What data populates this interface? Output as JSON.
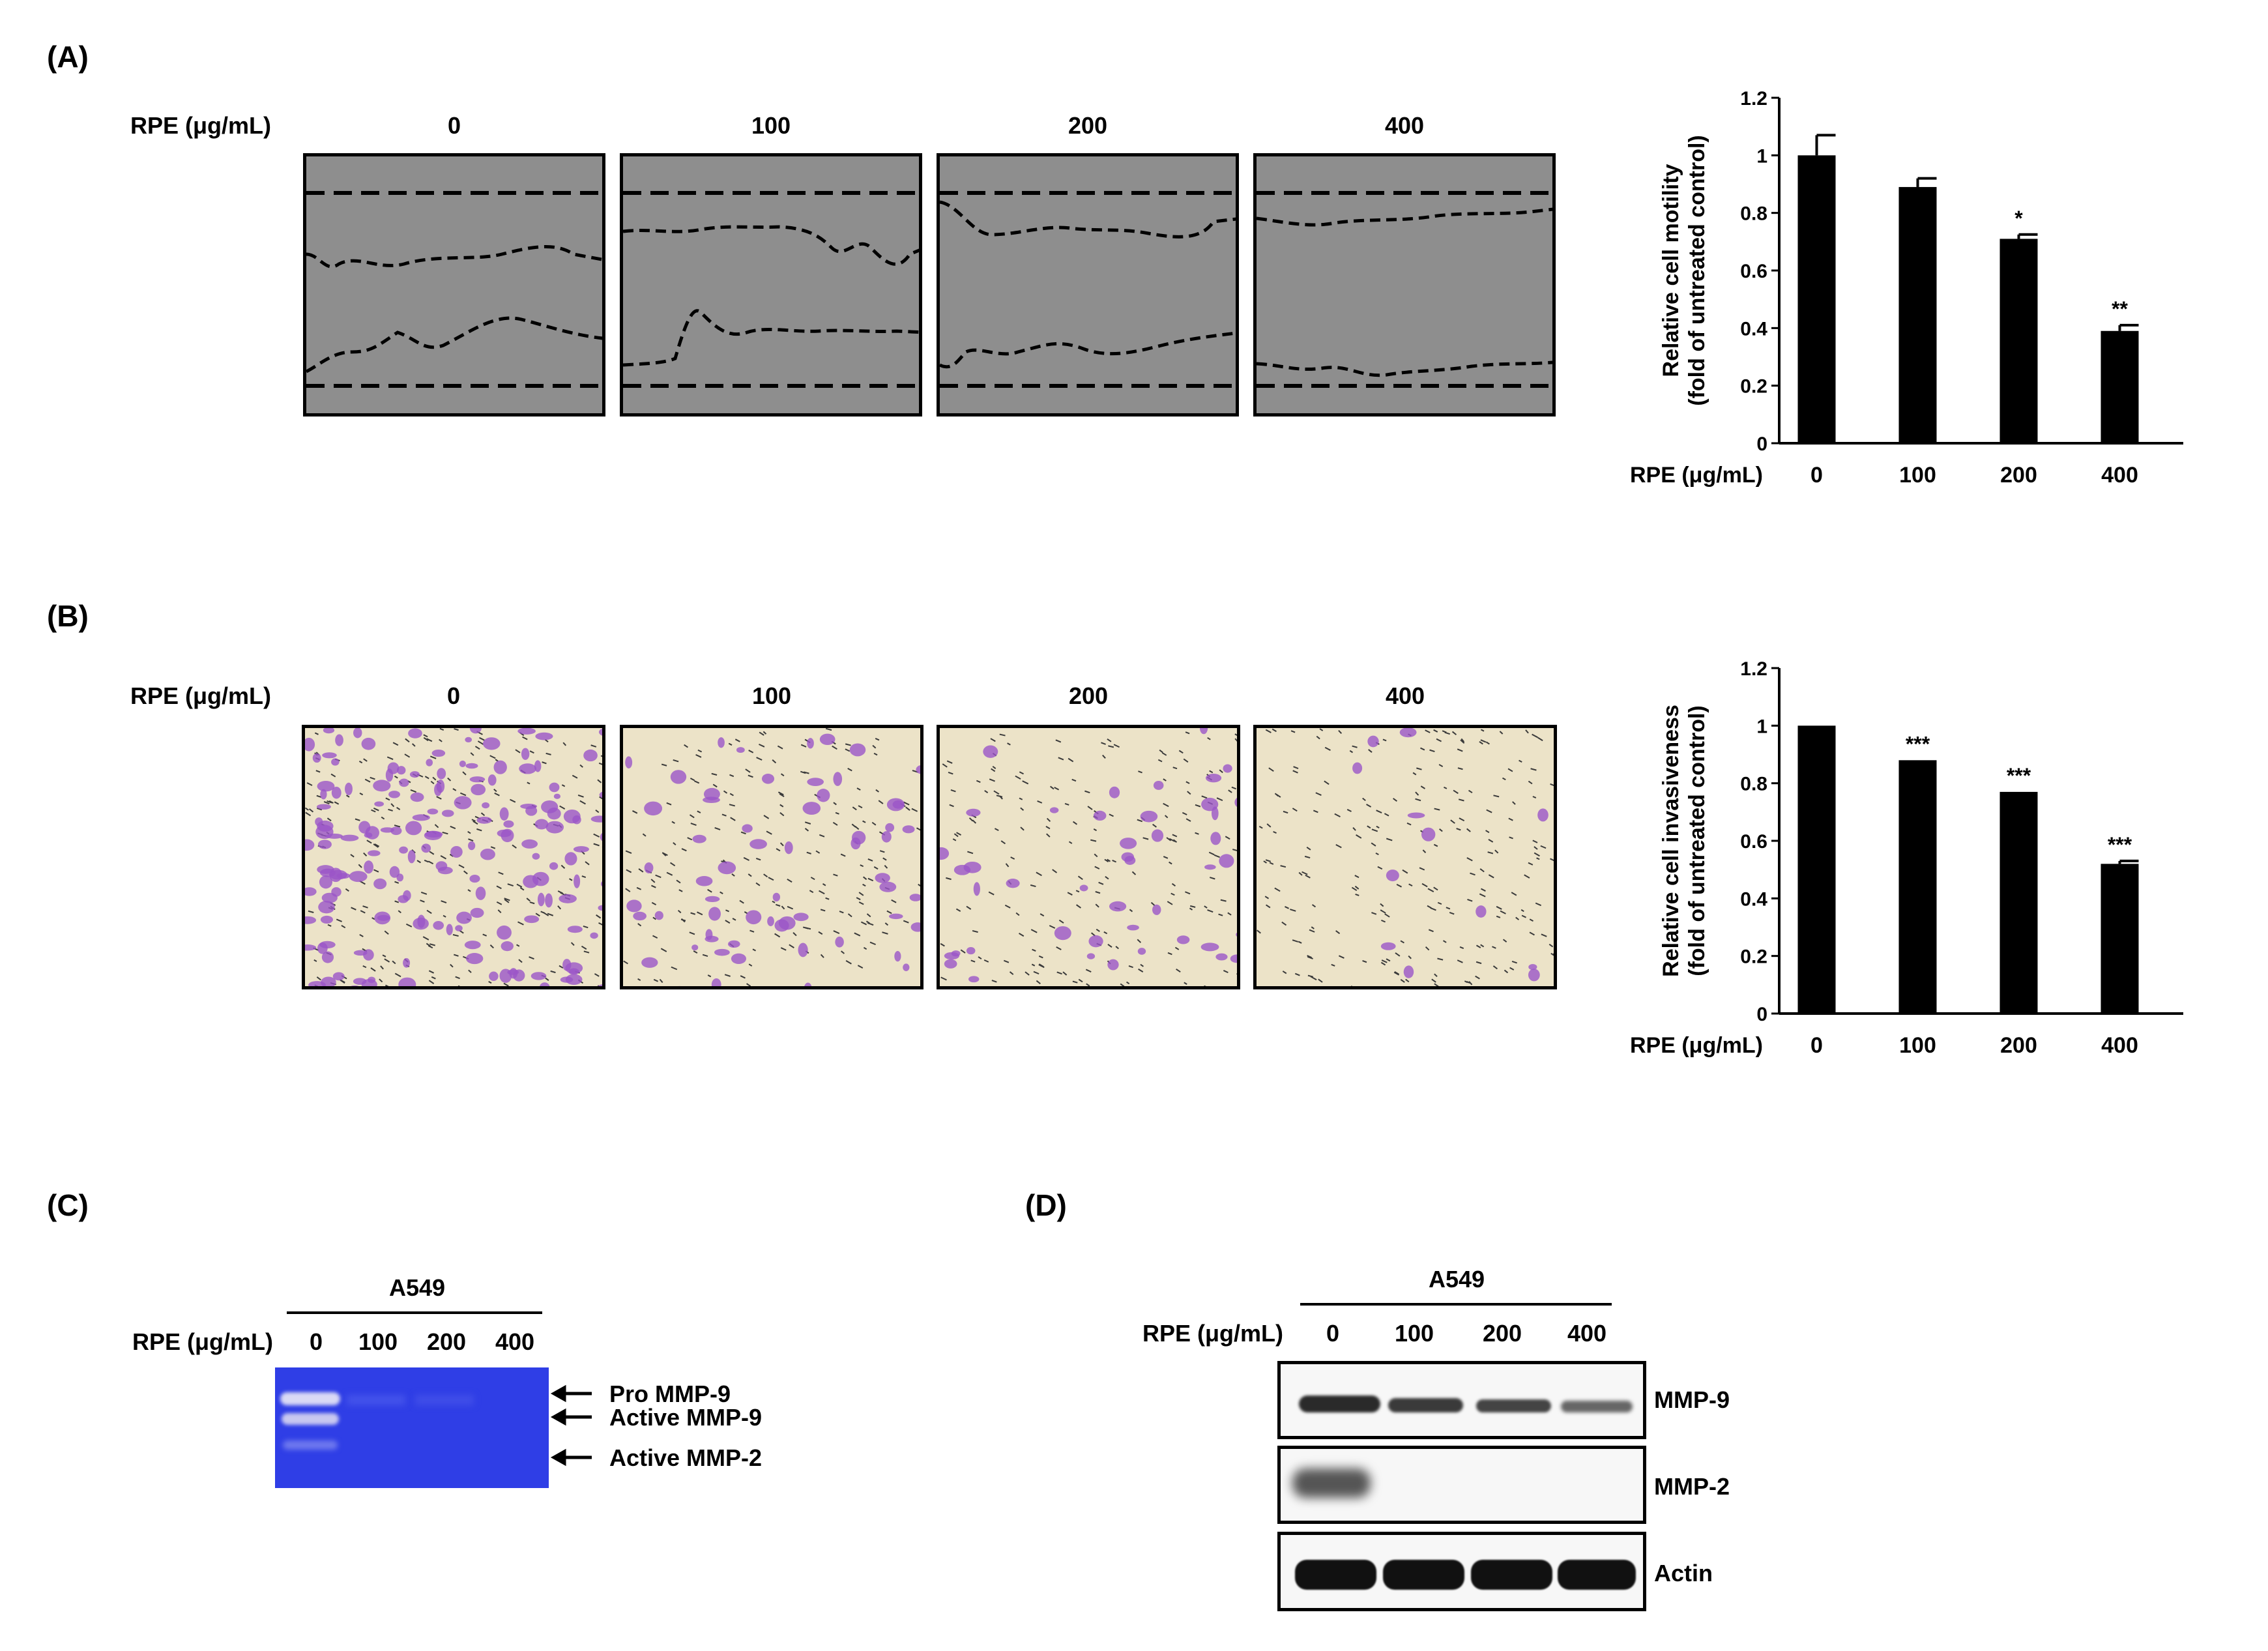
{
  "panels": {
    "A": "(A)",
    "B": "(B)",
    "C": "(C)",
    "D": "(D)"
  },
  "rpe_label": "RPE (μg/mL)",
  "doses": [
    "0",
    "100",
    "200",
    "400"
  ],
  "cell_line": "A549",
  "gel_bands": [
    "Pro MMP-9",
    "Active MMP-9",
    "Active MMP-2"
  ],
  "blot_rows": [
    "MMP-9",
    "MMP-2",
    "Actin"
  ],
  "chart_data": [
    {
      "type": "bar",
      "ylabel_line1": "Relative cell motility",
      "ylabel_line2": "(fold of untreated control)",
      "xlabel": "RPE (μg/mL)",
      "categories": [
        "0",
        "100",
        "200",
        "400"
      ],
      "values": [
        1.0,
        0.89,
        0.71,
        0.39
      ],
      "errors": [
        0.07,
        0.03,
        0.015,
        0.02
      ],
      "significance": [
        "",
        "",
        "*",
        "**"
      ],
      "ylim": [
        0,
        1.2
      ],
      "yticks": [
        "0",
        "0.2",
        "0.4",
        "0.6",
        "0.8",
        "1",
        "1.2"
      ]
    },
    {
      "type": "bar",
      "ylabel_line1": "Relative cell invasiveness",
      "ylabel_line2": "(fold of  untreated control)",
      "xlabel": "RPE (μg/mL)",
      "categories": [
        "0",
        "100",
        "200",
        "400"
      ],
      "values": [
        1.0,
        0.88,
        0.77,
        0.52
      ],
      "errors": [
        0.0,
        0.0,
        0.0,
        0.01
      ],
      "significance": [
        "",
        "***",
        "***",
        "***"
      ],
      "ylim": [
        0,
        1.2
      ],
      "yticks": [
        "0",
        "0.2",
        "0.4",
        "0.6",
        "0.8",
        "1",
        "1.2"
      ]
    }
  ]
}
